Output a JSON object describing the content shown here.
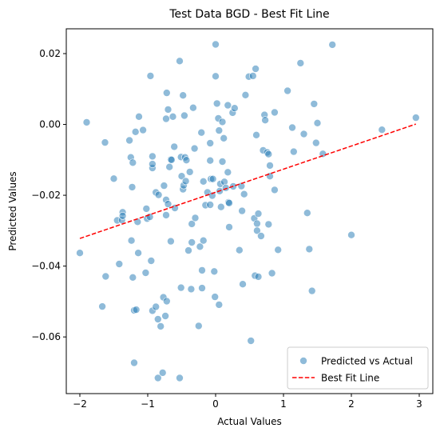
{
  "chart_data": {
    "type": "scatter",
    "title": "Test Data BGD - Best Fit Line",
    "xlabel": "Actual Values",
    "ylabel": "Predicted Values",
    "xlim": [
      -2.2,
      3.2
    ],
    "ylim": [
      -0.076,
      0.027
    ],
    "xticks": [
      -2,
      -1,
      0,
      1,
      2,
      3
    ],
    "xtick_labels": [
      "−2",
      "−1",
      "0",
      "1",
      "2",
      "3"
    ],
    "yticks": [
      -0.06,
      -0.04,
      -0.02,
      0.0,
      0.02
    ],
    "ytick_labels": [
      "−0.06",
      "−0.04",
      "−0.02",
      "0.00",
      "0.02"
    ],
    "grid": false,
    "legend_position": "lower-right",
    "series": [
      {
        "name": "Predicted vs Actual",
        "kind": "scatter",
        "color": "#1f77b4",
        "points": [
          [
            -2.0,
            -0.0363
          ],
          [
            -1.9,
            0.0006
          ],
          [
            -1.67,
            -0.0514
          ],
          [
            -1.63,
            -0.0051
          ],
          [
            -1.62,
            -0.0429
          ],
          [
            -1.5,
            -0.0153
          ],
          [
            -1.45,
            -0.0271
          ],
          [
            -1.42,
            -0.0394
          ],
          [
            -1.38,
            -0.027
          ],
          [
            -1.37,
            -0.0248
          ],
          [
            -1.37,
            -0.0258
          ],
          [
            -1.27,
            -0.0045
          ],
          [
            -1.25,
            -0.0093
          ],
          [
            -1.24,
            -0.0328
          ],
          [
            -1.23,
            -0.0177
          ],
          [
            -1.22,
            -0.0432
          ],
          [
            -1.22,
            -0.0108
          ],
          [
            -1.2,
            -0.0673
          ],
          [
            -1.2,
            -0.0525
          ],
          [
            -1.18,
            -0.0021
          ],
          [
            -1.17,
            -0.0523
          ],
          [
            -1.15,
            -0.0275
          ],
          [
            -1.14,
            -0.0363
          ],
          [
            -1.13,
            0.0022
          ],
          [
            -1.07,
            -0.0016
          ],
          [
            -1.03,
            -0.0419
          ],
          [
            -1.02,
            -0.0238
          ],
          [
            -1.01,
            -0.0266
          ],
          [
            -0.97,
            -0.0261
          ],
          [
            -0.96,
            0.0137
          ],
          [
            -0.95,
            -0.0385
          ],
          [
            -0.93,
            -0.009
          ],
          [
            -0.93,
            -0.0123
          ],
          [
            -0.93,
            -0.0112
          ],
          [
            -0.93,
            -0.0526
          ],
          [
            -0.88,
            -0.0515
          ],
          [
            -0.88,
            -0.0192
          ],
          [
            -0.85,
            -0.055
          ],
          [
            -0.85,
            -0.0716
          ],
          [
            -0.84,
            -0.0199
          ],
          [
            -0.81,
            -0.057
          ],
          [
            -0.78,
            -0.0701
          ],
          [
            -0.77,
            -0.0488
          ],
          [
            -0.76,
            -0.0173
          ],
          [
            -0.74,
            -0.0541
          ],
          [
            -0.73,
            -0.0256
          ],
          [
            -0.73,
            -0.0213
          ],
          [
            -0.73,
            0.0016
          ],
          [
            -0.72,
            0.0089
          ],
          [
            -0.72,
            -0.0499
          ],
          [
            -0.7,
            0.0042
          ],
          [
            -0.7,
            -0.0225
          ],
          [
            -0.68,
            -0.012
          ],
          [
            -0.66,
            -0.0099
          ],
          [
            -0.66,
            -0.033
          ],
          [
            -0.65,
            -0.01
          ],
          [
            -0.63,
            0.0022
          ],
          [
            -0.61,
            -0.0063
          ],
          [
            -0.6,
            -0.0236
          ],
          [
            -0.53,
            0.0179
          ],
          [
            -0.53,
            -0.0716
          ],
          [
            -0.51,
            -0.0461
          ],
          [
            -0.51,
            -0.0092
          ],
          [
            -0.5,
            -0.0146
          ],
          [
            -0.48,
            0.0082
          ],
          [
            -0.48,
            -0.0183
          ],
          [
            -0.47,
            -0.0172
          ],
          [
            -0.46,
            0.0025
          ],
          [
            -0.45,
            -0.0093
          ],
          [
            -0.44,
            -0.016
          ],
          [
            -0.43,
            -0.0101
          ],
          [
            -0.4,
            -0.0356
          ],
          [
            -0.38,
            -0.0134
          ],
          [
            -0.36,
            -0.0465
          ],
          [
            -0.35,
            -0.0333
          ],
          [
            -0.35,
            -0.0281
          ],
          [
            -0.33,
            0.0047
          ],
          [
            -0.31,
            -0.0068
          ],
          [
            -0.3,
            -0.0264
          ],
          [
            -0.25,
            -0.0569
          ],
          [
            -0.23,
            -0.0345
          ],
          [
            -0.21,
            -0.0023
          ],
          [
            -0.2,
            -0.0462
          ],
          [
            -0.2,
            -0.0412
          ],
          [
            -0.18,
            -0.0161
          ],
          [
            -0.18,
            -0.0328
          ],
          [
            -0.15,
            -0.0228
          ],
          [
            -0.12,
            -0.0192
          ],
          [
            -0.08,
            -0.0053
          ],
          [
            -0.08,
            -0.0102
          ],
          [
            -0.08,
            -0.0227
          ],
          [
            -0.07,
            -0.0154
          ],
          [
            -0.05,
            -0.0201
          ],
          [
            -0.04,
            -0.0154
          ],
          [
            0.0,
            0.0226
          ],
          [
            0.0,
            0.0136
          ],
          [
            -0.01,
            -0.0487
          ],
          [
            -0.02,
            -0.0415
          ],
          [
            0.02,
            0.0059
          ],
          [
            0.04,
            0.0017
          ],
          [
            0.05,
            -0.0017
          ],
          [
            0.05,
            -0.0509
          ],
          [
            0.06,
            -0.0188
          ],
          [
            0.07,
            -0.0168
          ],
          [
            0.08,
            -0.0233
          ],
          [
            0.1,
            0.0007
          ],
          [
            0.1,
            -0.0105
          ],
          [
            0.12,
            -0.0039
          ],
          [
            0.13,
            -0.0162
          ],
          [
            0.15,
            -0.0179
          ],
          [
            0.18,
            0.0054
          ],
          [
            0.18,
            -0.0135
          ],
          [
            0.19,
            -0.022
          ],
          [
            0.2,
            -0.0222
          ],
          [
            0.2,
            -0.029
          ],
          [
            0.25,
            0.0033
          ],
          [
            0.26,
            -0.0175
          ],
          [
            0.28,
            0.0046
          ],
          [
            0.35,
            -0.0355
          ],
          [
            0.38,
            -0.0174
          ],
          [
            0.39,
            -0.0244
          ],
          [
            0.4,
            -0.0451
          ],
          [
            0.42,
            -0.0197
          ],
          [
            0.44,
            0.0083
          ],
          [
            0.49,
            0.0135
          ],
          [
            0.52,
            -0.0611
          ],
          [
            0.55,
            0.0137
          ],
          [
            0.57,
            -0.0265
          ],
          [
            0.58,
            -0.0427
          ],
          [
            0.59,
            0.0157
          ],
          [
            0.6,
            -0.003
          ],
          [
            0.61,
            -0.028
          ],
          [
            0.61,
            -0.03
          ],
          [
            0.63,
            -0.0252
          ],
          [
            0.63,
            -0.043
          ],
          [
            0.67,
            -0.0315
          ],
          [
            0.7,
            -0.0073
          ],
          [
            0.72,
            0.0027
          ],
          [
            0.73,
            0.0012
          ],
          [
            0.76,
            -0.0079
          ],
          [
            0.78,
            -0.0282
          ],
          [
            0.78,
            -0.0084
          ],
          [
            0.8,
            -0.0116
          ],
          [
            0.8,
            -0.0146
          ],
          [
            0.83,
            -0.042
          ],
          [
            0.87,
            -0.0185
          ],
          [
            0.87,
            0.0034
          ],
          [
            0.92,
            -0.0354
          ],
          [
            1.06,
            0.0095
          ],
          [
            1.13,
            -0.0009
          ],
          [
            1.15,
            -0.0077
          ],
          [
            1.25,
            0.0173
          ],
          [
            1.3,
            -0.0027
          ],
          [
            1.35,
            -0.025
          ],
          [
            1.38,
            -0.0352
          ],
          [
            1.42,
            -0.047
          ],
          [
            1.45,
            0.0058
          ],
          [
            1.48,
            -0.0052
          ],
          [
            1.5,
            0.0004
          ],
          [
            1.58,
            -0.0083
          ],
          [
            1.72,
            0.0225
          ],
          [
            2.0,
            -0.0312
          ],
          [
            2.45,
            -0.0015
          ],
          [
            2.95,
            0.0019
          ]
        ]
      },
      {
        "name": "Best Fit Line",
        "kind": "line",
        "color": "#ff0000",
        "x": [
          -2.0,
          2.95
        ],
        "y": [
          -0.0322,
          0.0001
        ]
      }
    ]
  }
}
